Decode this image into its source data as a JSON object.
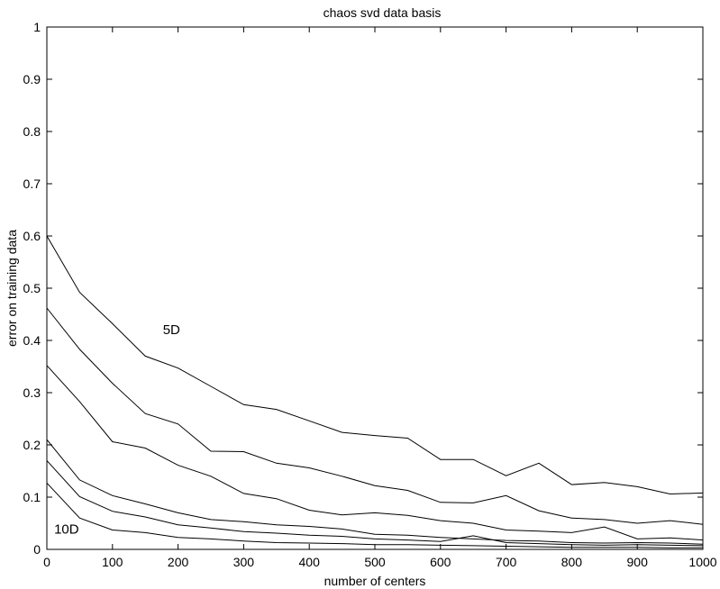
{
  "chart_data": {
    "type": "line",
    "title": "chaos  svd data basis",
    "xlabel": "number of centers",
    "ylabel": "error on training data",
    "xlim": [
      0,
      1000
    ],
    "ylim": [
      0,
      1
    ],
    "xticks": [
      0,
      100,
      200,
      300,
      400,
      500,
      600,
      700,
      800,
      900,
      1000
    ],
    "yticks": [
      0,
      0.1,
      0.2,
      0.3,
      0.4,
      0.5,
      0.6,
      0.7,
      0.8,
      0.9,
      1
    ],
    "grid": false,
    "x": [
      0,
      50,
      100,
      150,
      200,
      250,
      300,
      350,
      400,
      450,
      500,
      550,
      600,
      650,
      700,
      750,
      800,
      850,
      900,
      950,
      1000
    ],
    "series": [
      {
        "values": [
          0.6,
          0.492,
          0.432,
          0.37,
          0.347,
          0.312,
          0.277,
          0.268,
          0.246,
          0.224,
          0.218,
          0.213,
          0.172,
          0.172,
          0.141,
          0.165,
          0.124,
          0.128,
          0.12,
          0.106,
          0.108
        ]
      },
      {
        "values": [
          0.462,
          0.383,
          0.318,
          0.26,
          0.24,
          0.188,
          0.187,
          0.165,
          0.156,
          0.14,
          0.122,
          0.113,
          0.09,
          0.089,
          0.103,
          0.074,
          0.06,
          0.057,
          0.05,
          0.055,
          0.048
        ]
      },
      {
        "values": [
          0.352,
          0.283,
          0.206,
          0.194,
          0.161,
          0.14,
          0.107,
          0.097,
          0.075,
          0.066,
          0.07,
          0.065,
          0.055,
          0.05,
          0.037,
          0.035,
          0.032,
          0.043,
          0.02,
          0.022,
          0.018
        ]
      },
      {
        "values": [
          0.21,
          0.133,
          0.103,
          0.087,
          0.07,
          0.057,
          0.053,
          0.047,
          0.044,
          0.039,
          0.029,
          0.027,
          0.023,
          0.02,
          0.017,
          0.016,
          0.013,
          0.012,
          0.013,
          0.012,
          0.01
        ]
      },
      {
        "values": [
          0.17,
          0.101,
          0.073,
          0.062,
          0.047,
          0.041,
          0.034,
          0.031,
          0.027,
          0.025,
          0.02,
          0.018,
          0.015,
          0.026,
          0.013,
          0.011,
          0.009,
          0.008,
          0.009,
          0.008,
          0.007
        ]
      },
      {
        "values": [
          0.127,
          0.06,
          0.037,
          0.032,
          0.023,
          0.02,
          0.016,
          0.013,
          0.012,
          0.011,
          0.009,
          0.009,
          0.008,
          0.007,
          0.006,
          0.005,
          0.004,
          0.004,
          0.004,
          0.003,
          0.003
        ]
      }
    ],
    "annotations": [
      {
        "text": "5D",
        "x": 190,
        "y": 0.412
      },
      {
        "text": "10D",
        "x": 30,
        "y": 0.03
      }
    ]
  }
}
